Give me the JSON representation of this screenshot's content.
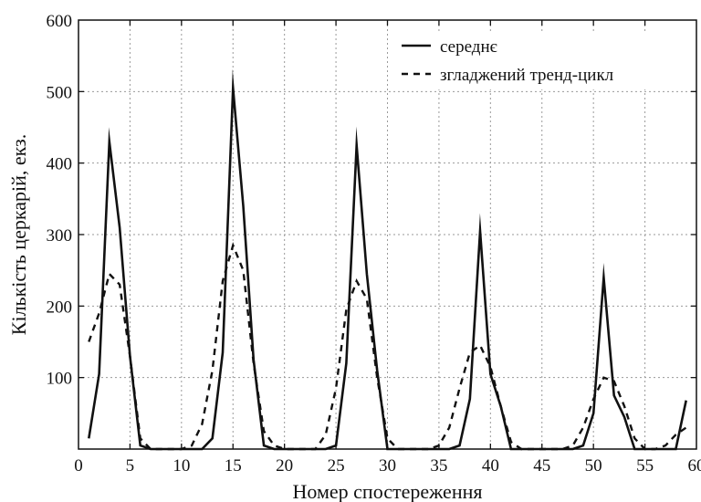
{
  "chart_data": {
    "type": "line",
    "xlabel": "Номер спостереження",
    "ylabel": "Кількість церкарій, екз.",
    "xlim": [
      0,
      60
    ],
    "ylim": [
      0,
      600
    ],
    "xticks": [
      0,
      5,
      10,
      15,
      20,
      25,
      30,
      35,
      40,
      45,
      50,
      55,
      60
    ],
    "yticks": [
      100,
      200,
      300,
      400,
      500,
      600
    ],
    "grid": true,
    "legend_position": "top-right",
    "series": [
      {
        "name": "середнє",
        "style": "solid",
        "color": "#111111",
        "x": [
          1,
          2,
          3,
          4,
          5,
          6,
          7,
          8,
          9,
          10,
          11,
          12,
          13,
          14,
          15,
          16,
          17,
          18,
          19,
          20,
          21,
          22,
          23,
          24,
          25,
          26,
          27,
          28,
          29,
          30,
          31,
          32,
          33,
          34,
          35,
          36,
          37,
          38,
          39,
          40,
          41,
          42,
          43,
          44,
          45,
          46,
          47,
          48,
          49,
          50,
          51,
          52,
          53,
          54,
          55,
          56,
          57,
          58,
          59
        ],
        "y": [
          15,
          105,
          430,
          310,
          130,
          5,
          0,
          0,
          0,
          0,
          0,
          0,
          15,
          135,
          505,
          340,
          125,
          5,
          0,
          0,
          0,
          0,
          0,
          0,
          5,
          120,
          425,
          245,
          110,
          0,
          0,
          0,
          0,
          0,
          0,
          0,
          5,
          70,
          305,
          105,
          60,
          0,
          0,
          0,
          0,
          0,
          0,
          0,
          5,
          50,
          240,
          75,
          45,
          0,
          0,
          0,
          0,
          0,
          68
        ]
      },
      {
        "name": "згладжений тренд-цикл",
        "style": "dashed",
        "color": "#111111",
        "x": [
          1,
          2,
          3,
          4,
          5,
          6,
          7,
          8,
          9,
          10,
          11,
          12,
          13,
          14,
          15,
          16,
          17,
          18,
          19,
          20,
          21,
          22,
          23,
          24,
          25,
          26,
          27,
          28,
          29,
          30,
          31,
          32,
          33,
          34,
          35,
          36,
          37,
          38,
          39,
          40,
          41,
          42,
          43,
          44,
          45,
          46,
          47,
          48,
          49,
          50,
          51,
          52,
          53,
          54,
          55,
          56,
          57,
          58,
          59
        ],
        "y": [
          150,
          190,
          245,
          230,
          130,
          15,
          0,
          0,
          0,
          0,
          5,
          35,
          110,
          235,
          285,
          250,
          120,
          25,
          5,
          0,
          0,
          0,
          0,
          20,
          85,
          195,
          235,
          210,
          100,
          15,
          0,
          0,
          0,
          0,
          5,
          30,
          85,
          135,
          145,
          115,
          60,
          10,
          0,
          0,
          0,
          0,
          0,
          5,
          30,
          70,
          100,
          95,
          60,
          15,
          0,
          0,
          5,
          20,
          30
        ]
      }
    ]
  }
}
